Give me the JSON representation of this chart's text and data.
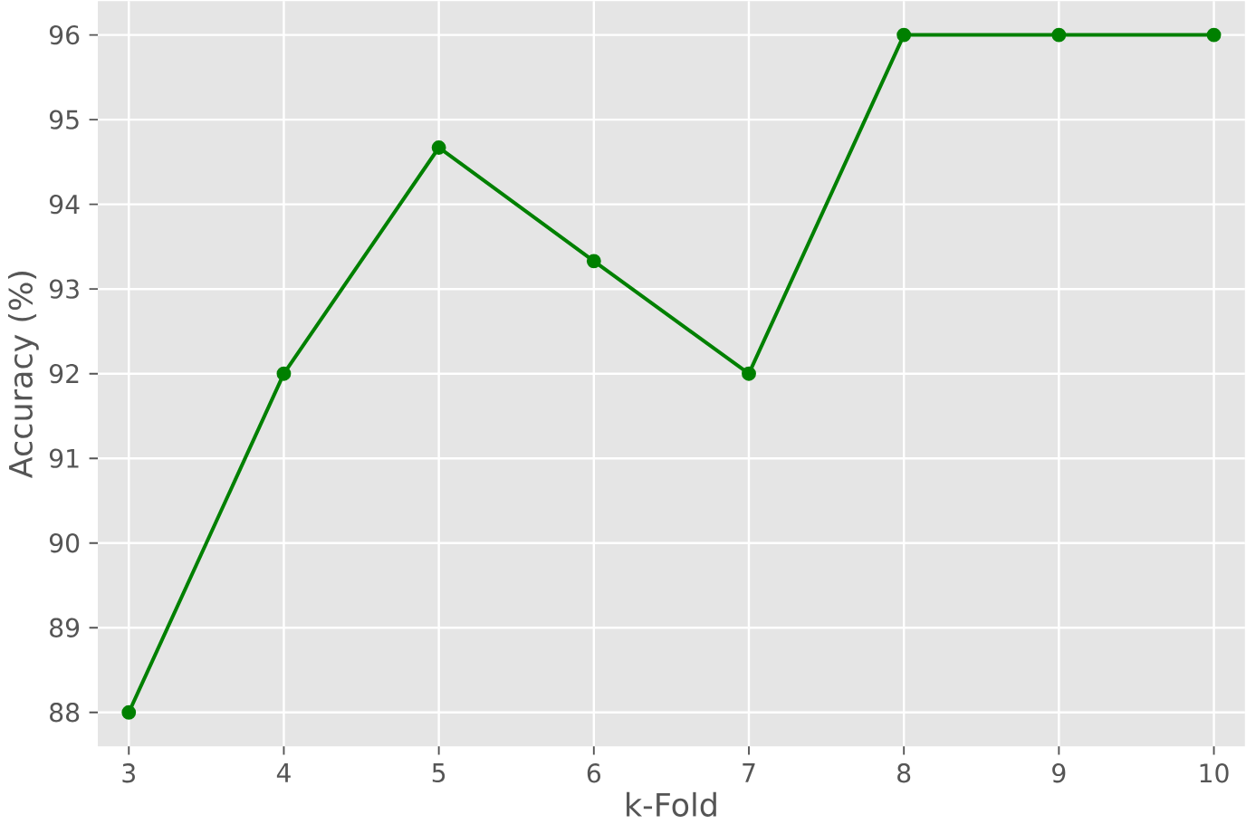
{
  "chart_data": {
    "type": "line",
    "xlabel": "k-Fold",
    "ylabel": "Accuracy (%)",
    "x": [
      3,
      4,
      5,
      6,
      7,
      8,
      9,
      10
    ],
    "series": [
      {
        "color": "#008000",
        "values": [
          88,
          92,
          94.67,
          93.33,
          92,
          96,
          96,
          96
        ]
      }
    ],
    "xlim": [
      2.8,
      10.2
    ],
    "ylim": [
      87.6,
      96.4
    ],
    "xticks": [
      3,
      4,
      5,
      6,
      7,
      8,
      9,
      10
    ],
    "yticks": [
      88,
      89,
      90,
      91,
      92,
      93,
      94,
      95,
      96
    ],
    "grid": true,
    "marker": "circle",
    "line_style": "solid"
  }
}
